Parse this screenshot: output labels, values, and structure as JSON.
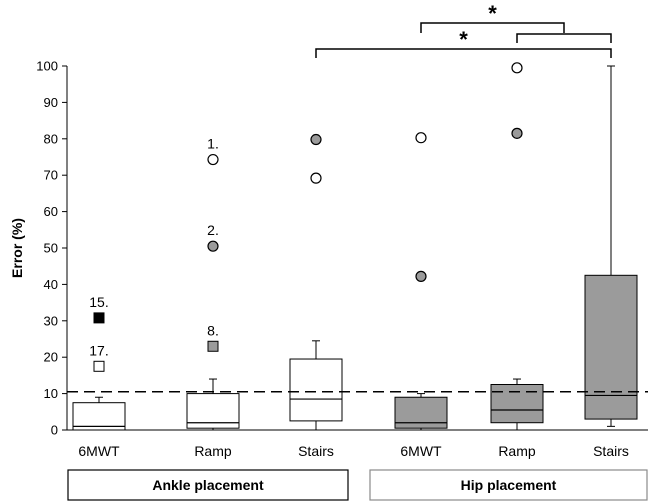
{
  "chart_data": {
    "type": "box",
    "ylabel": "Error (%)",
    "ylim": [
      0,
      100
    ],
    "yticks": [
      "0",
      "10",
      "20",
      "30",
      "40",
      "50",
      "60",
      "70",
      "80",
      "90",
      "100"
    ],
    "reference_line": {
      "y": 10.5,
      "style": "dashed"
    },
    "groups": [
      {
        "label": "Ankle placement",
        "categories": [
          0,
          1,
          2
        ]
      },
      {
        "label": "Hip placement",
        "categories": [
          3,
          4,
          5
        ]
      }
    ],
    "categories": [
      "6MWT",
      "Ramp",
      "Stairs",
      "6MWT",
      "Ramp",
      "Stairs"
    ],
    "boxes": [
      {
        "fill": "#ffffff",
        "min": 0,
        "q1": 0,
        "median": 1,
        "q3": 7.5,
        "max": 9
      },
      {
        "fill": "#ffffff",
        "min": 0,
        "q1": 0.5,
        "median": 2,
        "q3": 10,
        "max": 14
      },
      {
        "fill": "#ffffff",
        "min": 0,
        "q1": 2.5,
        "median": 8.5,
        "q3": 19.5,
        "max": 24.5
      },
      {
        "fill": "#9b9b9b",
        "min": 0,
        "q1": 0.5,
        "median": 2,
        "q3": 9,
        "max": 10
      },
      {
        "fill": "#9b9b9b",
        "min": 0,
        "q1": 2,
        "median": 5.5,
        "q3": 12.5,
        "max": 14
      },
      {
        "fill": "#9b9b9b",
        "min": 1,
        "q1": 3,
        "median": 9.5,
        "q3": 42.5,
        "max": 100
      }
    ],
    "outliers": [
      {
        "cat": 0,
        "y": 30.8,
        "shape": "square",
        "fill": "#000000",
        "label": "15."
      },
      {
        "cat": 0,
        "y": 17.5,
        "shape": "square",
        "fill": "#ffffff",
        "label": "17."
      },
      {
        "cat": 1,
        "y": 74.3,
        "shape": "circle",
        "fill": "#ffffff",
        "label": "1."
      },
      {
        "cat": 1,
        "y": 50.5,
        "shape": "circle",
        "fill": "#9b9b9b",
        "label": "2."
      },
      {
        "cat": 1,
        "y": 23,
        "shape": "square",
        "fill": "#9b9b9b",
        "label": "8."
      },
      {
        "cat": 2,
        "y": 79.8,
        "shape": "circle",
        "fill": "#9b9b9b",
        "label": ""
      },
      {
        "cat": 2,
        "y": 69.2,
        "shape": "circle",
        "fill": "#ffffff",
        "label": ""
      },
      {
        "cat": 3,
        "y": 80.3,
        "shape": "circle",
        "fill": "#ffffff",
        "label": ""
      },
      {
        "cat": 3,
        "y": 42.2,
        "shape": "circle",
        "fill": "#9b9b9b",
        "label": ""
      },
      {
        "cat": 4,
        "y": 99.5,
        "shape": "circle",
        "fill": "#ffffff",
        "label": ""
      },
      {
        "cat": 4,
        "y": 81.5,
        "shape": "circle",
        "fill": "#9b9b9b",
        "label": ""
      }
    ],
    "significance": [
      {
        "from": 2,
        "to": 5,
        "label": "*"
      },
      {
        "from": 3,
        "to": 4.5,
        "label": "*"
      }
    ]
  }
}
